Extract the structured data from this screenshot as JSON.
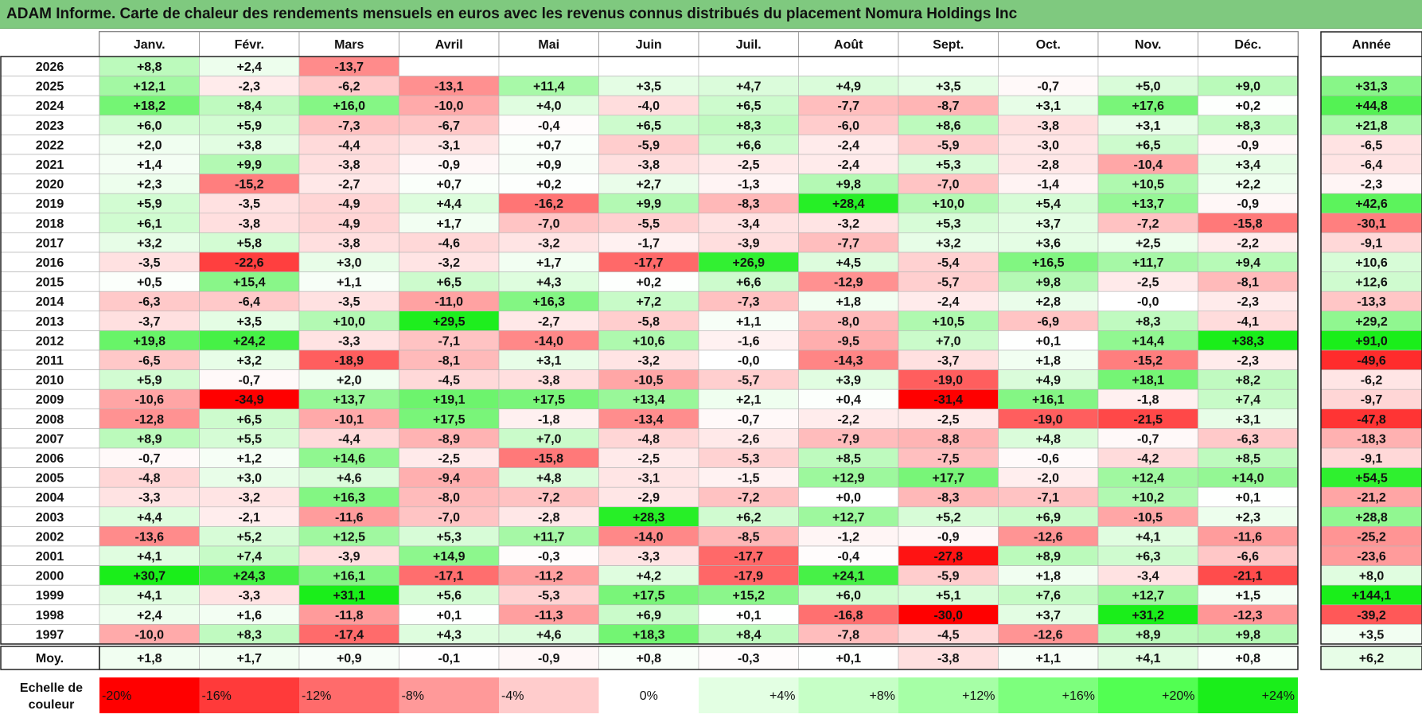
{
  "title": "ADAM Informe. Carte de chaleur des rendements mensuels en euros avec les revenus connus distribués du placement Nomura Holdings Inc",
  "chart_data": {
    "type": "heatmap",
    "months": [
      "Janv.",
      "Févr.",
      "Mars",
      "Avril",
      "Mai",
      "Juin",
      "Juil.",
      "Août",
      "Sept.",
      "Oct.",
      "Nov.",
      "Déc."
    ],
    "year_header": "Année",
    "rows": [
      {
        "year": "2026",
        "values": [
          "+8,8",
          "+2,4",
          "-13,7",
          "",
          "",
          "",
          "",
          "",
          "",
          "",
          "",
          ""
        ],
        "annual": ""
      },
      {
        "year": "2025",
        "values": [
          "+12,1",
          "-2,3",
          "-6,2",
          "-13,1",
          "+11,4",
          "+3,5",
          "+4,7",
          "+4,9",
          "+3,5",
          "-0,7",
          "+5,0",
          "+9,0"
        ],
        "annual": "+31,3"
      },
      {
        "year": "2024",
        "values": [
          "+18,2",
          "+8,4",
          "+16,0",
          "-10,0",
          "+4,0",
          "-4,0",
          "+6,5",
          "-7,7",
          "-8,7",
          "+3,1",
          "+17,6",
          "+0,2"
        ],
        "annual": "+44,8"
      },
      {
        "year": "2023",
        "values": [
          "+6,0",
          "+5,9",
          "-7,3",
          "-6,7",
          "-0,4",
          "+6,5",
          "+8,3",
          "-6,0",
          "+8,6",
          "-3,8",
          "+3,1",
          "+8,3"
        ],
        "annual": "+21,8"
      },
      {
        "year": "2022",
        "values": [
          "+2,0",
          "+3,8",
          "-4,4",
          "-3,1",
          "+0,7",
          "-5,9",
          "+6,6",
          "-2,4",
          "-5,9",
          "-3,0",
          "+6,5",
          "-0,9"
        ],
        "annual": "-6,5"
      },
      {
        "year": "2021",
        "values": [
          "+1,4",
          "+9,9",
          "-3,8",
          "-0,9",
          "+0,9",
          "-3,8",
          "-2,5",
          "-2,4",
          "+5,3",
          "-2,8",
          "-10,4",
          "+3,4"
        ],
        "annual": "-6,4"
      },
      {
        "year": "2020",
        "values": [
          "+2,3",
          "-15,2",
          "-2,7",
          "+0,7",
          "+0,2",
          "+2,7",
          "-1,3",
          "+9,8",
          "-7,0",
          "-1,4",
          "+10,5",
          "+2,2"
        ],
        "annual": "-2,3"
      },
      {
        "year": "2019",
        "values": [
          "+5,9",
          "-3,5",
          "-4,9",
          "+4,4",
          "-16,2",
          "+9,9",
          "-8,3",
          "+28,4",
          "+10,0",
          "+5,4",
          "+13,7",
          "-0,9"
        ],
        "annual": "+42,6"
      },
      {
        "year": "2018",
        "values": [
          "+6,1",
          "-3,8",
          "-4,9",
          "+1,7",
          "-7,0",
          "-5,5",
          "-3,4",
          "-3,2",
          "+5,3",
          "+3,7",
          "-7,2",
          "-15,8"
        ],
        "annual": "-30,1"
      },
      {
        "year": "2017",
        "values": [
          "+3,2",
          "+5,8",
          "-3,8",
          "-4,6",
          "-3,2",
          "-1,7",
          "-3,9",
          "-7,7",
          "+3,2",
          "+3,6",
          "+2,5",
          "-2,2"
        ],
        "annual": "-9,1"
      },
      {
        "year": "2016",
        "values": [
          "-3,5",
          "-22,6",
          "+3,0",
          "-3,2",
          "+1,7",
          "-17,7",
          "+26,9",
          "+4,5",
          "-5,4",
          "+16,5",
          "+11,7",
          "+9,4"
        ],
        "annual": "+10,6"
      },
      {
        "year": "2015",
        "values": [
          "+0,5",
          "+15,4",
          "+1,1",
          "+6,5",
          "+4,3",
          "+0,2",
          "+6,6",
          "-12,9",
          "-5,7",
          "+9,8",
          "-2,5",
          "-8,1"
        ],
        "annual": "+12,6"
      },
      {
        "year": "2014",
        "values": [
          "-6,3",
          "-6,4",
          "-3,5",
          "-11,0",
          "+16,3",
          "+7,2",
          "-7,3",
          "+1,8",
          "-2,4",
          "+2,8",
          "-0,0",
          "-2,3"
        ],
        "annual": "-13,3"
      },
      {
        "year": "2013",
        "values": [
          "-3,7",
          "+3,5",
          "+10,0",
          "+29,5",
          "-2,7",
          "-5,8",
          "+1,1",
          "-8,0",
          "+10,5",
          "-6,9",
          "+8,3",
          "-4,1"
        ],
        "annual": "+29,2"
      },
      {
        "year": "2012",
        "values": [
          "+19,8",
          "+24,2",
          "-3,3",
          "-7,1",
          "-14,0",
          "+10,6",
          "-1,6",
          "-9,5",
          "+7,0",
          "+0,1",
          "+14,4",
          "+38,3"
        ],
        "annual": "+91,0"
      },
      {
        "year": "2011",
        "values": [
          "-6,5",
          "+3,2",
          "-18,9",
          "-8,1",
          "+3,1",
          "-3,2",
          "-0,0",
          "-14,3",
          "-3,7",
          "+1,8",
          "-15,2",
          "-2,3"
        ],
        "annual": "-49,6"
      },
      {
        "year": "2010",
        "values": [
          "+5,9",
          "-0,7",
          "+2,0",
          "-4,5",
          "-3,8",
          "-10,5",
          "-5,7",
          "+3,9",
          "-19,0",
          "+4,9",
          "+18,1",
          "+8,2"
        ],
        "annual": "-6,2"
      },
      {
        "year": "2009",
        "values": [
          "-10,6",
          "-34,9",
          "+13,7",
          "+19,1",
          "+17,5",
          "+13,4",
          "+2,1",
          "+0,4",
          "-31,4",
          "+16,1",
          "-1,8",
          "+7,4"
        ],
        "annual": "-9,7"
      },
      {
        "year": "2008",
        "values": [
          "-12,8",
          "+6,5",
          "-10,1",
          "+17,5",
          "-1,8",
          "-13,4",
          "-0,7",
          "-2,2",
          "-2,5",
          "-19,0",
          "-21,5",
          "+3,1"
        ],
        "annual": "-47,8"
      },
      {
        "year": "2007",
        "values": [
          "+8,9",
          "+5,5",
          "-4,4",
          "-8,9",
          "+7,0",
          "-4,8",
          "-2,6",
          "-7,9",
          "-8,8",
          "+4,8",
          "-0,7",
          "-6,3"
        ],
        "annual": "-18,3"
      },
      {
        "year": "2006",
        "values": [
          "-0,7",
          "+1,2",
          "+14,6",
          "-2,5",
          "-15,8",
          "-2,5",
          "-5,3",
          "+8,5",
          "-7,5",
          "-0,6",
          "-4,2",
          "+8,5"
        ],
        "annual": "-9,1"
      },
      {
        "year": "2005",
        "values": [
          "-4,8",
          "+3,0",
          "+4,6",
          "-9,4",
          "+4,8",
          "-3,1",
          "-1,5",
          "+12,9",
          "+17,7",
          "-2,0",
          "+12,4",
          "+14,0"
        ],
        "annual": "+54,5"
      },
      {
        "year": "2004",
        "values": [
          "-3,3",
          "-3,2",
          "+16,3",
          "-8,0",
          "-7,2",
          "-2,9",
          "-7,2",
          "+0,0",
          "-8,3",
          "-7,1",
          "+10,2",
          "+0,1"
        ],
        "annual": "-21,2"
      },
      {
        "year": "2003",
        "values": [
          "+4,4",
          "-2,1",
          "-11,6",
          "-7,0",
          "-2,8",
          "+28,3",
          "+6,2",
          "+12,7",
          "+5,2",
          "+6,9",
          "-10,5",
          "+2,3"
        ],
        "annual": "+28,8"
      },
      {
        "year": "2002",
        "values": [
          "-13,6",
          "+5,2",
          "+12,5",
          "+5,3",
          "+11,7",
          "-14,0",
          "-8,5",
          "-1,2",
          "-0,9",
          "-12,6",
          "+4,1",
          "-11,6"
        ],
        "annual": "-25,2"
      },
      {
        "year": "2001",
        "values": [
          "+4,1",
          "+7,4",
          "-3,9",
          "+14,9",
          "-0,3",
          "-3,3",
          "-17,7",
          "-0,4",
          "-27,8",
          "+8,9",
          "+6,3",
          "-6,6"
        ],
        "annual": "-23,6"
      },
      {
        "year": "2000",
        "values": [
          "+30,7",
          "+24,3",
          "+16,1",
          "-17,1",
          "-11,2",
          "+4,2",
          "-17,9",
          "+24,1",
          "-5,9",
          "+1,8",
          "-3,4",
          "-21,1"
        ],
        "annual": "+8,0"
      },
      {
        "year": "1999",
        "values": [
          "+4,1",
          "-3,3",
          "+31,1",
          "+5,6",
          "-5,3",
          "+17,5",
          "+15,2",
          "+6,0",
          "+5,1",
          "+7,6",
          "+12,7",
          "+1,5"
        ],
        "annual": "+144,1"
      },
      {
        "year": "1998",
        "values": [
          "+2,4",
          "+1,6",
          "-11,8",
          "+0,1",
          "-11,3",
          "+6,9",
          "+0,1",
          "-16,8",
          "-30,0",
          "+3,7",
          "+31,2",
          "-12,3"
        ],
        "annual": "-39,2"
      },
      {
        "year": "1997",
        "values": [
          "-10,0",
          "+8,3",
          "-17,4",
          "+4,3",
          "+4,6",
          "+18,3",
          "+8,4",
          "-7,8",
          "-4,5",
          "-12,6",
          "+8,9",
          "+9,8"
        ],
        "annual": "+3,5"
      }
    ],
    "average": {
      "label": "Moy.",
      "values": [
        "+1,8",
        "+1,7",
        "+0,9",
        "-0,1",
        "-0,9",
        "+0,8",
        "-0,3",
        "+0,1",
        "-3,8",
        "+1,1",
        "+4,1",
        "+0,8"
      ],
      "annual": "+6,2"
    },
    "scale": {
      "title_line1": "Echelle de",
      "title_line2": "couleur",
      "labels": [
        "-20%",
        "-16%",
        "-12%",
        "-8%",
        "-4%",
        "0%",
        "+4%",
        "+8%",
        "+12%",
        "+16%",
        "+20%",
        "+24%"
      ],
      "colors": [
        "#ff0000",
        "#ff3a3a",
        "#ff6b6b",
        "#ff9999",
        "#ffcccc",
        "#ffffff",
        "#e3ffe3",
        "#c6ffc6",
        "#a6ffa6",
        "#7dff7d",
        "#52ff52",
        "#1aee1a"
      ]
    }
  }
}
